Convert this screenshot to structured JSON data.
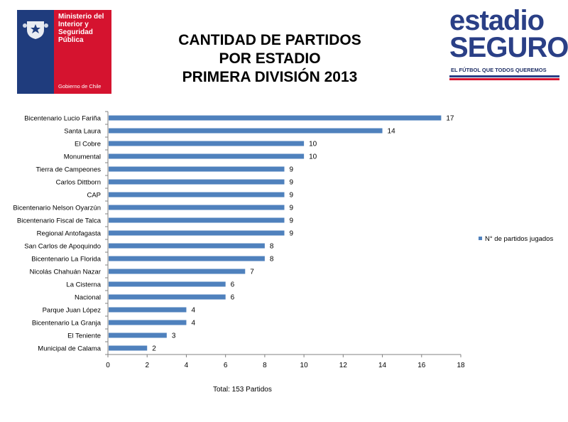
{
  "header": {
    "ministry_name": "Ministerio del\nInterior y\nSeguridad\nPública",
    "government": "Gobierno de Chile",
    "brand_line1": "estadio",
    "brand_line2": "SEGURO",
    "brand_tagline": "EL FÚTBOL QUE TODOS QUEREMOS"
  },
  "title_lines": [
    "CANTIDAD DE PARTIDOS",
    "POR ESTADIO",
    "PRIMERA DIVISIÓN 2013"
  ],
  "colors": {
    "bar": "#4f81bd",
    "ministry_blue": "#1f3c7d",
    "ministry_red": "#d5132f",
    "brand_blue": "#2a3f86"
  },
  "chart_data": {
    "type": "bar",
    "orientation": "horizontal",
    "categories": [
      "Bicentenario Lucio Fariña",
      "Santa Laura",
      "El Cobre",
      "Monumental",
      "Tierra de Campeones",
      "Carlos Dittborn",
      "CAP",
      "Bicentenario Nelson Oyarzún",
      "Bicentenario Fiscal de Talca",
      "Regional Antofagasta",
      "San Carlos de Apoquindo",
      "Bicentenario La Florida",
      "Nicolás Chahuán Nazar",
      "La Cisterna",
      "Nacional",
      "Parque Juan López",
      "Bicentenario La Granja",
      "El Teniente",
      "Municipal de Calama"
    ],
    "series": [
      {
        "name": "N° de partidos jugados",
        "values": [
          17,
          14,
          10,
          10,
          9,
          9,
          9,
          9,
          9,
          9,
          8,
          8,
          7,
          6,
          6,
          4,
          4,
          3,
          2
        ]
      }
    ],
    "xlim": [
      0,
      18
    ],
    "xticks": [
      0,
      2,
      4,
      6,
      8,
      10,
      12,
      14,
      16,
      18
    ],
    "legend": "right",
    "grid": false,
    "note": "Total: 153 Partidos"
  }
}
